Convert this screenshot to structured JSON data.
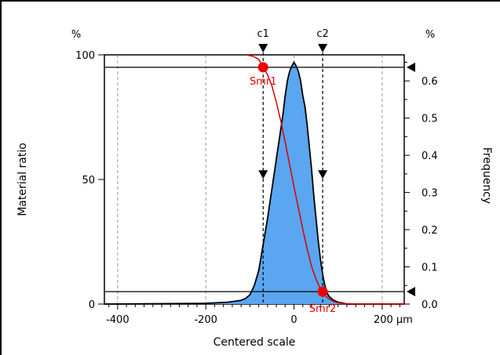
{
  "chart_data": {
    "type": "area",
    "title": "",
    "xlabel": "Centered scale",
    "ylabel_left": "Material ratio",
    "ylabel_right": "Frequency",
    "left_unit": "%",
    "right_unit": "%",
    "x_unit": "µm",
    "xlim": [
      -430,
      250
    ],
    "ylim_left": [
      0,
      100
    ],
    "ylim_right": [
      0,
      0.67
    ],
    "x_ticks": [
      -400,
      -200,
      0,
      200
    ],
    "x_tick_labels": [
      "-400",
      "-200",
      "0",
      "200 µm"
    ],
    "y_left_ticks": [
      0,
      50,
      100
    ],
    "y_left_tick_labels": [
      "0",
      "50",
      "100"
    ],
    "y_right_ticks": [
      0,
      0.1,
      0.2,
      0.3,
      0.4,
      0.5,
      0.6
    ],
    "y_right_tick_labels": [
      "0.0",
      "0.1",
      "0.2",
      "0.3",
      "0.4",
      "0.5",
      "0.6"
    ],
    "grid": "vertical dashed",
    "series": [
      {
        "name": "Frequency",
        "axis": "right",
        "color": "#5aa6f0",
        "x": [
          -430,
          -200,
          -150,
          -120,
          -110,
          -100,
          -90,
          -80,
          -70,
          -60,
          -50,
          -40,
          -35,
          -30,
          -25,
          -20,
          -15,
          -10,
          -5,
          0,
          5,
          10,
          15,
          20,
          25,
          30,
          35,
          40,
          45,
          50,
          55,
          60,
          65,
          70,
          75,
          80,
          90,
          100,
          110,
          120,
          130,
          250
        ],
        "values": [
          0.0,
          0.002,
          0.005,
          0.01,
          0.015,
          0.025,
          0.05,
          0.09,
          0.16,
          0.23,
          0.31,
          0.39,
          0.43,
          0.47,
          0.51,
          0.56,
          0.6,
          0.625,
          0.64,
          0.65,
          0.64,
          0.625,
          0.6,
          0.56,
          0.53,
          0.48,
          0.42,
          0.36,
          0.29,
          0.23,
          0.17,
          0.12,
          0.08,
          0.05,
          0.03,
          0.02,
          0.01,
          0.005,
          0.003,
          0.0,
          0.0,
          0.0
        ]
      },
      {
        "name": "Material ratio",
        "axis": "left",
        "color": "#dd0000",
        "x": [
          -110,
          -100,
          -90,
          -80,
          -70,
          -60,
          -50,
          -40,
          -30,
          -20,
          -10,
          0,
          10,
          20,
          30,
          40,
          50,
          60,
          70,
          80,
          90,
          100,
          110,
          130,
          150,
          200,
          250
        ],
        "values": [
          100,
          99.7,
          99.2,
          98.2,
          95,
          92,
          87.5,
          81,
          73.5,
          65,
          56,
          47,
          38.5,
          30,
          22,
          15,
          10,
          6,
          3.5,
          2,
          1,
          0.5,
          0.2,
          0.1,
          0,
          0,
          0
        ]
      }
    ],
    "cursors": [
      {
        "label": "c1",
        "x": -70,
        "upper": 95,
        "lower": 5
      },
      {
        "label": "c2",
        "x": 65,
        "upper": 95,
        "lower": 5
      }
    ],
    "markers": [
      {
        "label": "Smr1",
        "x": -70,
        "y": 95,
        "color": "#ee0000"
      },
      {
        "label": "Smr2",
        "x": 65,
        "y": 5,
        "color": "#ee0000"
      }
    ],
    "threshold_lines": [
      95,
      5
    ]
  }
}
